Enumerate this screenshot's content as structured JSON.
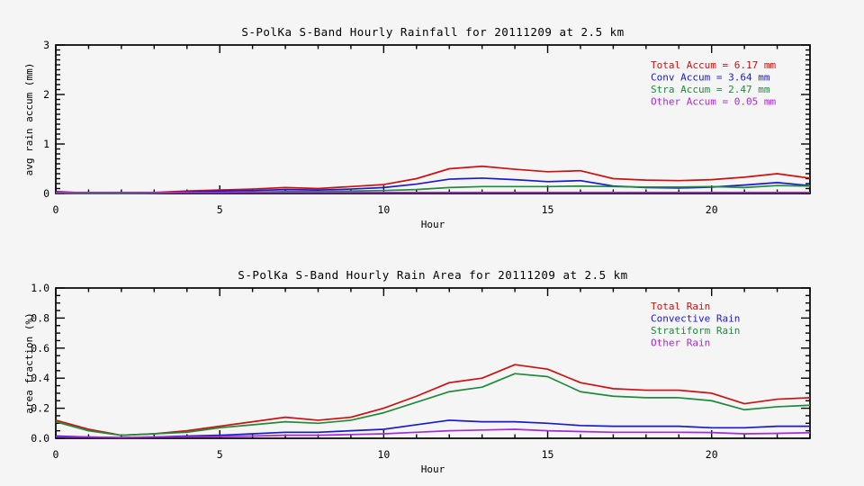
{
  "page": {
    "background": "#f5f5f5",
    "axis_color": "#000000"
  },
  "chart_data": [
    {
      "type": "line",
      "title": "S-PolKa S-Band Hourly Rainfall for 20111209 at 2.5 km",
      "xlabel": "Hour",
      "ylabel": "avg rain accum (mm)",
      "xlim": [
        0,
        23
      ],
      "ylim": [
        0,
        3
      ],
      "xticks": [
        0,
        5,
        10,
        15,
        20
      ],
      "xtick_labels": [
        "0",
        "5",
        "10",
        "15",
        "20"
      ],
      "x_minor_interval": 1,
      "yticks": [
        0,
        1,
        2,
        3
      ],
      "ytick_labels": [
        "0",
        "1",
        "2",
        "3"
      ],
      "y_minor_interval": 0.1,
      "grid": false,
      "legend_position": "upper-right-inside",
      "x": [
        0,
        1,
        2,
        3,
        4,
        5,
        6,
        7,
        8,
        9,
        10,
        11,
        12,
        13,
        14,
        15,
        16,
        17,
        18,
        19,
        20,
        21,
        22,
        23
      ],
      "series": [
        {
          "name": "Total Accum",
          "legend": "Total Accum = 6.17 mm",
          "total_mm": 6.17,
          "color": "#cc1111",
          "values": [
            0.04,
            0.01,
            0.01,
            0.02,
            0.05,
            0.07,
            0.09,
            0.12,
            0.1,
            0.14,
            0.18,
            0.3,
            0.5,
            0.55,
            0.49,
            0.44,
            0.46,
            0.3,
            0.27,
            0.26,
            0.28,
            0.33,
            0.4,
            0.31
          ]
        },
        {
          "name": "Conv Accum",
          "legend": "Conv Accum = 3.64 mm",
          "total_mm": 3.64,
          "color": "#1a1acc",
          "values": [
            0.03,
            0.01,
            0.0,
            0.01,
            0.03,
            0.05,
            0.06,
            0.08,
            0.07,
            0.09,
            0.12,
            0.19,
            0.29,
            0.31,
            0.28,
            0.24,
            0.26,
            0.15,
            0.12,
            0.11,
            0.13,
            0.17,
            0.22,
            0.16
          ]
        },
        {
          "name": "Stra Accum",
          "legend": "Stra Accum = 2.47 mm",
          "total_mm": 2.47,
          "color": "#1f8b3c",
          "values": [
            0.01,
            0.0,
            0.0,
            0.01,
            0.02,
            0.02,
            0.03,
            0.04,
            0.04,
            0.05,
            0.06,
            0.08,
            0.12,
            0.14,
            0.14,
            0.14,
            0.15,
            0.14,
            0.13,
            0.13,
            0.14,
            0.12,
            0.16,
            0.15
          ]
        },
        {
          "name": "Other Accum",
          "legend": "Other Accum = 0.05 mm",
          "total_mm": 0.05,
          "color": "#a62ad6",
          "values": [
            0.02,
            0.02,
            0.02,
            0.02,
            0.02,
            0.02,
            0.02,
            0.02,
            0.02,
            0.02,
            0.02,
            0.02,
            0.02,
            0.02,
            0.02,
            0.02,
            0.02,
            0.02,
            0.02,
            0.02,
            0.02,
            0.02,
            0.02,
            0.02
          ]
        }
      ]
    },
    {
      "type": "line",
      "title": "S-PolKa S-Band Hourly Rain Area for 20111209 at 2.5 km",
      "xlabel": "Hour",
      "ylabel": "area fraction (%)",
      "xlim": [
        0,
        23
      ],
      "ylim": [
        0,
        1
      ],
      "xticks": [
        0,
        5,
        10,
        15,
        20
      ],
      "xtick_labels": [
        "0",
        "5",
        "10",
        "15",
        "20"
      ],
      "x_minor_interval": 1,
      "yticks": [
        0,
        0.2,
        0.4,
        0.6,
        0.8,
        1.0
      ],
      "ytick_labels": [
        "0.0",
        "0.2",
        "0.4",
        "0.6",
        "0.8",
        "1.0"
      ],
      "y_minor_interval": 0.05,
      "grid": false,
      "legend_position": "upper-right-inside",
      "x": [
        0,
        1,
        2,
        3,
        4,
        5,
        6,
        7,
        8,
        9,
        10,
        11,
        12,
        13,
        14,
        15,
        16,
        17,
        18,
        19,
        20,
        21,
        22,
        23
      ],
      "series": [
        {
          "name": "Total Rain",
          "legend": "Total Rain",
          "color": "#cc1111",
          "values": [
            0.12,
            0.06,
            0.02,
            0.03,
            0.05,
            0.08,
            0.11,
            0.14,
            0.12,
            0.14,
            0.2,
            0.28,
            0.37,
            0.4,
            0.49,
            0.46,
            0.37,
            0.33,
            0.32,
            0.32,
            0.3,
            0.23,
            0.26,
            0.27
          ]
        },
        {
          "name": "Convective Rain",
          "legend": "Convective Rain",
          "color": "#1a1acc",
          "values": [
            0.015,
            0.008,
            0.005,
            0.008,
            0.015,
            0.02,
            0.03,
            0.04,
            0.04,
            0.05,
            0.06,
            0.09,
            0.12,
            0.11,
            0.11,
            0.1,
            0.085,
            0.08,
            0.08,
            0.08,
            0.07,
            0.07,
            0.08,
            0.08
          ]
        },
        {
          "name": "Stratiform Rain",
          "legend": "Stratiform Rain",
          "color": "#1f8b3c",
          "values": [
            0.11,
            0.05,
            0.02,
            0.03,
            0.04,
            0.07,
            0.09,
            0.11,
            0.1,
            0.12,
            0.17,
            0.24,
            0.31,
            0.34,
            0.43,
            0.41,
            0.31,
            0.28,
            0.27,
            0.27,
            0.25,
            0.19,
            0.21,
            0.22
          ]
        },
        {
          "name": "Other Rain",
          "legend": "Other Rain",
          "color": "#a62ad6",
          "values": [
            0.01,
            0.008,
            0.005,
            0.008,
            0.01,
            0.012,
            0.015,
            0.02,
            0.02,
            0.025,
            0.03,
            0.04,
            0.05,
            0.055,
            0.06,
            0.05,
            0.045,
            0.04,
            0.04,
            0.04,
            0.038,
            0.03,
            0.033,
            0.037
          ]
        }
      ]
    }
  ]
}
